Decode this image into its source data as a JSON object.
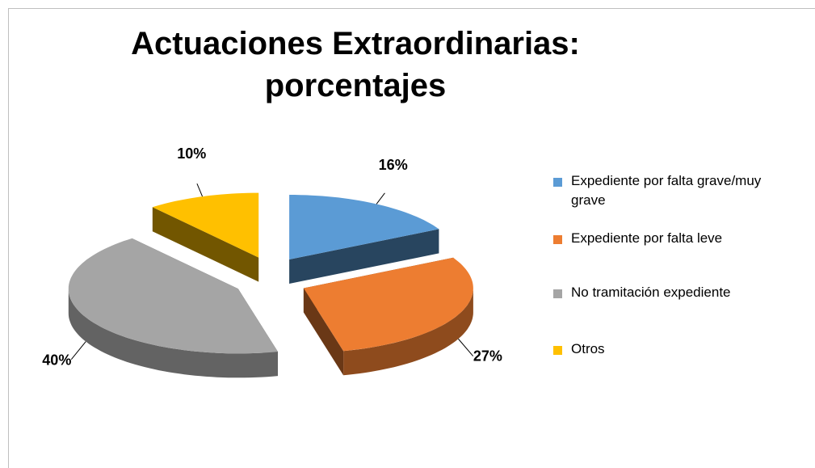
{
  "chart_data": {
    "type": "pie3d",
    "title": "Actuaciones Extraordinarias: porcentajes",
    "categories": [
      "Expediente por falta grave/muy grave",
      "Expediente por falta leve",
      "No tramitación expediente",
      "Otros"
    ],
    "values": [
      16,
      27,
      40,
      10
    ],
    "value_labels": [
      "16%",
      "27%",
      "40%",
      "10%"
    ],
    "colors": [
      "#5b9bd5",
      "#ed7d31",
      "#a5a5a5",
      "#ffc000"
    ],
    "legend": "right"
  }
}
